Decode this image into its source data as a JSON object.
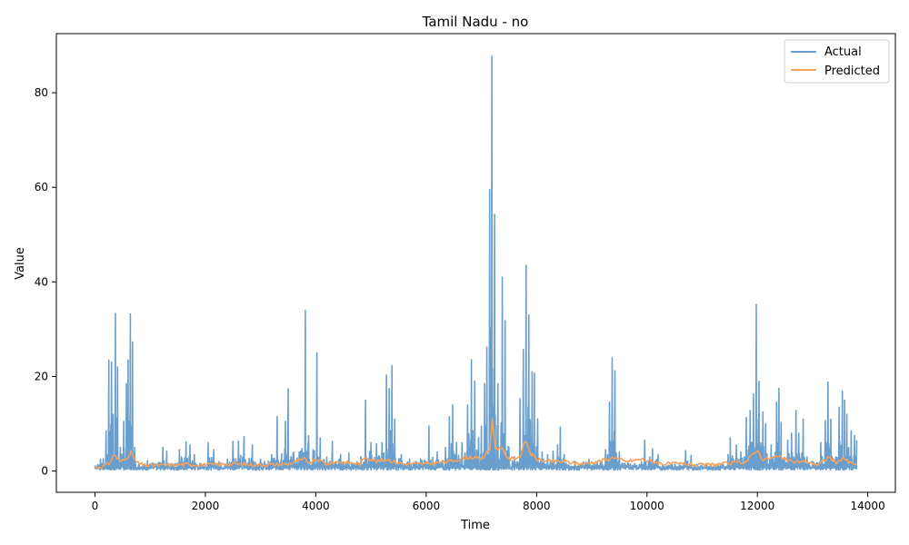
{
  "chart_data": {
    "type": "line",
    "title": "Tamil Nadu - no",
    "xlabel": "Time",
    "ylabel": "Value",
    "xlim": [
      -700,
      14500
    ],
    "ylim": [
      -4.5,
      92.5
    ],
    "xticks": [
      0,
      2000,
      4000,
      6000,
      8000,
      10000,
      12000,
      14000
    ],
    "xtick_labels": [
      "0",
      "2000",
      "4000",
      "6000",
      "8000",
      "10000",
      "12000",
      "14000"
    ],
    "yticks": [
      0,
      20,
      40,
      60,
      80
    ],
    "ytick_labels": [
      "0",
      "20",
      "40",
      "60",
      "80"
    ],
    "grid": false,
    "legend_position": "top-right",
    "colors": {
      "actual": "#6a9fcd",
      "predicted": "#f5a05a"
    },
    "series": [
      {
        "name": "Actual",
        "peaks": [
          [
            0,
            1.2
          ],
          [
            100,
            2.5
          ],
          [
            200,
            8.5
          ],
          [
            250,
            23.5
          ],
          [
            300,
            23
          ],
          [
            330,
            12
          ],
          [
            370,
            33.3
          ],
          [
            410,
            22
          ],
          [
            460,
            5
          ],
          [
            520,
            10.5
          ],
          [
            570,
            18.5
          ],
          [
            600,
            23.5
          ],
          [
            640,
            33.2
          ],
          [
            680,
            27.3
          ],
          [
            720,
            5
          ],
          [
            800,
            1.5
          ],
          [
            950,
            2.2
          ],
          [
            1150,
            1.8
          ],
          [
            1230,
            5
          ],
          [
            1300,
            4.2
          ],
          [
            1400,
            1.5
          ],
          [
            1530,
            4.5
          ],
          [
            1650,
            6.2
          ],
          [
            1720,
            5.5
          ],
          [
            1800,
            3.5
          ],
          [
            1900,
            1.5
          ],
          [
            2050,
            6
          ],
          [
            2150,
            4.5
          ],
          [
            2250,
            2
          ],
          [
            2400,
            2.5
          ],
          [
            2500,
            6.3
          ],
          [
            2600,
            6.3
          ],
          [
            2700,
            7.3
          ],
          [
            2850,
            5.5
          ],
          [
            3000,
            2.5
          ],
          [
            3200,
            3.5
          ],
          [
            3300,
            11.5
          ],
          [
            3450,
            10.5
          ],
          [
            3500,
            17.4
          ],
          [
            3600,
            4
          ],
          [
            3700,
            4
          ],
          [
            3810,
            34
          ],
          [
            3870,
            7.5
          ],
          [
            3950,
            4.5
          ],
          [
            4020,
            25
          ],
          [
            4080,
            7
          ],
          [
            4200,
            3
          ],
          [
            4300,
            6.3
          ],
          [
            4450,
            3.5
          ],
          [
            4600,
            3.8
          ],
          [
            4750,
            2
          ],
          [
            4900,
            15
          ],
          [
            5000,
            6
          ],
          [
            5100,
            5.8
          ],
          [
            5200,
            6
          ],
          [
            5280,
            20.3
          ],
          [
            5330,
            17.5
          ],
          [
            5380,
            22.3
          ],
          [
            5430,
            11
          ],
          [
            5550,
            3.5
          ],
          [
            5700,
            2.5
          ],
          [
            5900,
            2.5
          ],
          [
            6050,
            9.5
          ],
          [
            6200,
            4
          ],
          [
            6350,
            5
          ],
          [
            6420,
            11.5
          ],
          [
            6480,
            14
          ],
          [
            6550,
            6
          ],
          [
            6650,
            6
          ],
          [
            6750,
            14
          ],
          [
            6820,
            23.5
          ],
          [
            6880,
            19
          ],
          [
            6950,
            7
          ],
          [
            7000,
            9.5
          ],
          [
            7060,
            18.5
          ],
          [
            7100,
            26.2
          ],
          [
            7150,
            59.5
          ],
          [
            7190,
            87.7
          ],
          [
            7240,
            54.3
          ],
          [
            7300,
            18.5
          ],
          [
            7380,
            41
          ],
          [
            7430,
            31.8
          ],
          [
            7500,
            5
          ],
          [
            7600,
            3
          ],
          [
            7700,
            15.3
          ],
          [
            7760,
            25.7
          ],
          [
            7810,
            43.5
          ],
          [
            7860,
            33
          ],
          [
            7920,
            21
          ],
          [
            7960,
            20.7
          ],
          [
            8020,
            11
          ],
          [
            8100,
            4
          ],
          [
            8200,
            3.5
          ],
          [
            8300,
            4.2
          ],
          [
            8380,
            5.5
          ],
          [
            8430,
            9.3
          ],
          [
            8500,
            3.5
          ],
          [
            8700,
            2
          ],
          [
            8950,
            2.5
          ],
          [
            9100,
            2
          ],
          [
            9250,
            4.5
          ],
          [
            9320,
            14.6
          ],
          [
            9370,
            23.9
          ],
          [
            9420,
            21.2
          ],
          [
            9500,
            4
          ],
          [
            9700,
            1.5
          ],
          [
            9900,
            2
          ],
          [
            9960,
            6.5
          ],
          [
            10050,
            3
          ],
          [
            10100,
            4.7
          ],
          [
            10200,
            3.5
          ],
          [
            10400,
            1
          ],
          [
            10700,
            4.3
          ],
          [
            10800,
            3.3
          ],
          [
            11000,
            1
          ],
          [
            11300,
            1
          ],
          [
            11470,
            3.5
          ],
          [
            11510,
            7
          ],
          [
            11620,
            5.5
          ],
          [
            11700,
            4
          ],
          [
            11800,
            11.3
          ],
          [
            11870,
            12.8
          ],
          [
            11930,
            16.3
          ],
          [
            11980,
            35.2
          ],
          [
            12030,
            19
          ],
          [
            12100,
            12.5
          ],
          [
            12150,
            10
          ],
          [
            12250,
            5.5
          ],
          [
            12350,
            14.6
          ],
          [
            12390,
            17.5
          ],
          [
            12430,
            10.3
          ],
          [
            12550,
            6.5
          ],
          [
            12620,
            8
          ],
          [
            12700,
            12.8
          ],
          [
            12750,
            8
          ],
          [
            12830,
            11
          ],
          [
            12900,
            3
          ],
          [
            13000,
            2
          ],
          [
            13150,
            6
          ],
          [
            13230,
            10.7
          ],
          [
            13280,
            18.8
          ],
          [
            13330,
            11
          ],
          [
            13420,
            3
          ],
          [
            13480,
            13.5
          ],
          [
            13540,
            16.9
          ],
          [
            13580,
            15
          ],
          [
            13620,
            12
          ],
          [
            13700,
            8.5
          ],
          [
            13760,
            7.5
          ],
          [
            13800,
            6.5
          ]
        ]
      },
      {
        "name": "Predicted",
        "points": [
          [
            0,
            0.8
          ],
          [
            150,
            1
          ],
          [
            250,
            1.5
          ],
          [
            350,
            3.5
          ],
          [
            450,
            2
          ],
          [
            550,
            2.5
          ],
          [
            650,
            4
          ],
          [
            750,
            1.8
          ],
          [
            900,
            1.2
          ],
          [
            1200,
            1.2
          ],
          [
            1600,
            1.4
          ],
          [
            2000,
            1.3
          ],
          [
            2500,
            1.5
          ],
          [
            3000,
            1.3
          ],
          [
            3500,
            1.5
          ],
          [
            3800,
            2.5
          ],
          [
            3900,
            1.5
          ],
          [
            4000,
            2.5
          ],
          [
            4200,
            1.5
          ],
          [
            4400,
            2
          ],
          [
            4800,
            1.5
          ],
          [
            4900,
            3
          ],
          [
            5100,
            2
          ],
          [
            5300,
            2.5
          ],
          [
            5400,
            2
          ],
          [
            5600,
            1.5
          ],
          [
            6000,
            1.5
          ],
          [
            6400,
            2
          ],
          [
            6800,
            3
          ],
          [
            7000,
            2.5
          ],
          [
            7150,
            4.5
          ],
          [
            7200,
            11
          ],
          [
            7250,
            5
          ],
          [
            7380,
            4.5
          ],
          [
            7500,
            2.5
          ],
          [
            7700,
            3
          ],
          [
            7800,
            6.5
          ],
          [
            7900,
            3.5
          ],
          [
            8000,
            2.5
          ],
          [
            8200,
            2
          ],
          [
            8500,
            2
          ],
          [
            8800,
            1.5
          ],
          [
            9000,
            1.8
          ],
          [
            9300,
            2.5
          ],
          [
            9400,
            3
          ],
          [
            9600,
            2
          ],
          [
            9900,
            2.5
          ],
          [
            10100,
            2
          ],
          [
            10300,
            1.5
          ],
          [
            10700,
            1.5
          ],
          [
            11000,
            1.2
          ],
          [
            11400,
            1.5
          ],
          [
            11800,
            2
          ],
          [
            11990,
            4.5
          ],
          [
            12100,
            2.5
          ],
          [
            12400,
            3
          ],
          [
            12600,
            2
          ],
          [
            12900,
            2
          ],
          [
            13100,
            1.3
          ],
          [
            13300,
            3
          ],
          [
            13450,
            1.5
          ],
          [
            13550,
            3
          ],
          [
            13650,
            1.8
          ],
          [
            13800,
            1.5
          ]
        ]
      }
    ]
  }
}
